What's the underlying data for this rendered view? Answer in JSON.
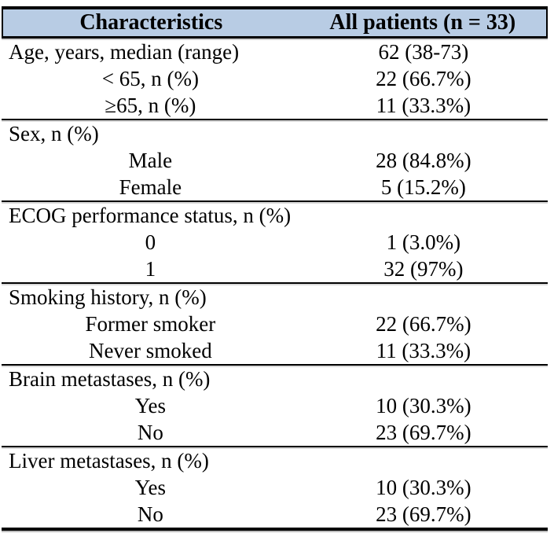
{
  "colors": {
    "header_bg": "#b8cce4",
    "border": "#000000"
  },
  "table": {
    "header": {
      "characteristics": "Characteristics",
      "all_patients": "All patients (n = 33)"
    },
    "rows": [
      {
        "label": "Age, years, median (range)",
        "value": "62 (38-73)"
      },
      {
        "label": "< 65, n (%)",
        "value": "22 (66.7%)"
      },
      {
        "label": "≥65, n (%)",
        "value": "11 (33.3%)"
      },
      {
        "label": "Sex, n (%)",
        "value": ""
      },
      {
        "label": "Male",
        "value": "28 (84.8%)"
      },
      {
        "label": "Female",
        "value": "5 (15.2%)"
      },
      {
        "label": "ECOG performance status, n (%)",
        "value": ""
      },
      {
        "label": "0",
        "value": "1 (3.0%)"
      },
      {
        "label": "1",
        "value": "32 (97%)"
      },
      {
        "label": "Smoking history, n (%)",
        "value": ""
      },
      {
        "label": "Former smoker",
        "value": "22 (66.7%)"
      },
      {
        "label": "Never smoked",
        "value": "11 (33.3%)"
      },
      {
        "label": "Brain metastases, n (%)",
        "value": ""
      },
      {
        "label": "Yes",
        "value": "10 (30.3%)"
      },
      {
        "label": "No",
        "value": "23 (69.7%)"
      },
      {
        "label": "Liver metastases, n (%)",
        "value": ""
      },
      {
        "label": "Yes",
        "value": "10 (30.3%)"
      },
      {
        "label": "No",
        "value": "23 (69.7%)"
      }
    ]
  }
}
